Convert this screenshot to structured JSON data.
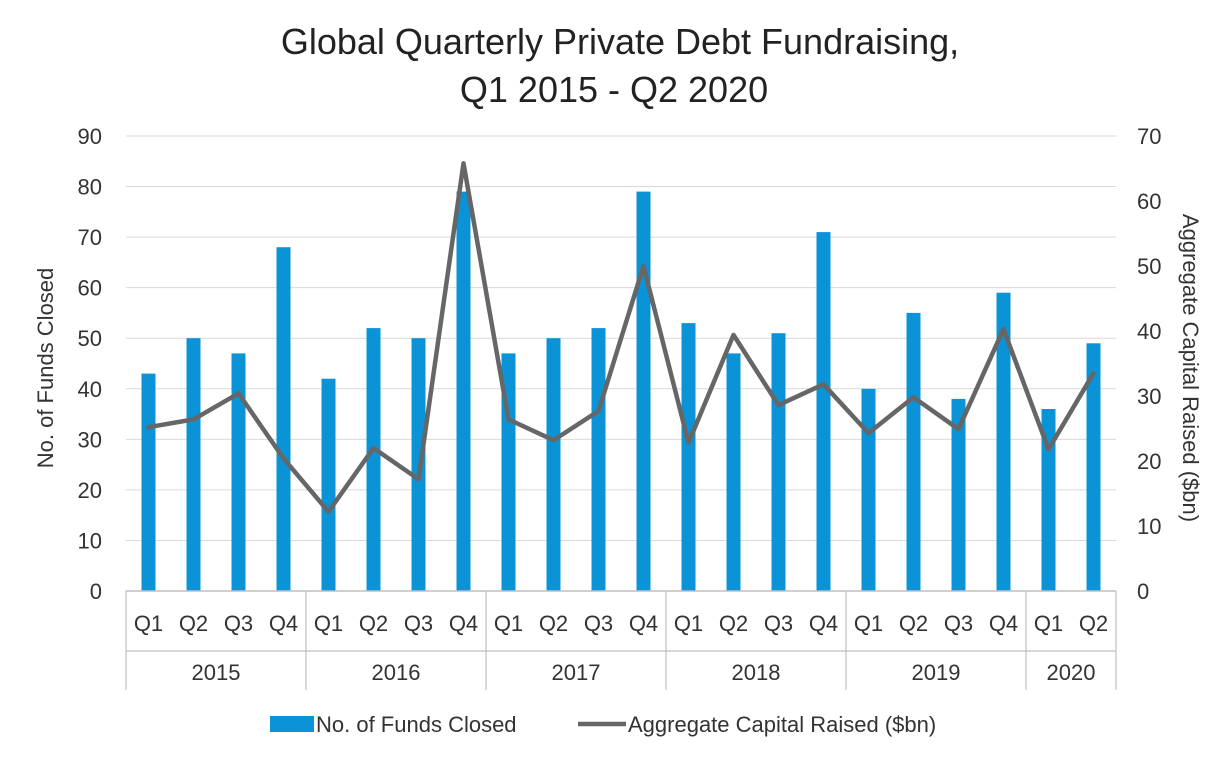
{
  "chart_data": {
    "type": "bar",
    "title_lines": [
      "Global Quarterly Private Debt Fundraising,",
      "Q1 2015 - Q2 2020"
    ],
    "ylabel_left": "No. of Funds Closed",
    "ylabel_right": "Aggregate Capital Raised ($bn)",
    "ylim_left": [
      0,
      90
    ],
    "ylim_right": [
      0,
      70
    ],
    "yticks_left": [
      "0",
      "10",
      "20",
      "30",
      "40",
      "50",
      "60",
      "70",
      "80",
      "90"
    ],
    "yticks_right": [
      "0",
      "10",
      "20",
      "30",
      "40",
      "50",
      "60",
      "70"
    ],
    "grid": true,
    "legend_position": "bottom",
    "categories": [
      "Q1",
      "Q2",
      "Q3",
      "Q4",
      "Q1",
      "Q2",
      "Q3",
      "Q4",
      "Q1",
      "Q2",
      "Q3",
      "Q4",
      "Q1",
      "Q2",
      "Q3",
      "Q4",
      "Q1",
      "Q2",
      "Q3",
      "Q4",
      "Q1",
      "Q2"
    ],
    "years": [
      {
        "label": "2015",
        "count": 4
      },
      {
        "label": "2016",
        "count": 4
      },
      {
        "label": "2017",
        "count": 4
      },
      {
        "label": "2018",
        "count": 4
      },
      {
        "label": "2019",
        "count": 4
      },
      {
        "label": "2020",
        "count": 2
      }
    ],
    "series": [
      {
        "name": "No. of Funds Closed",
        "type": "bar",
        "axis": "left",
        "color": "#0b93d8",
        "values": [
          43,
          50,
          47,
          68,
          42,
          52,
          50,
          79,
          47,
          50,
          52,
          79,
          53,
          47,
          51,
          71,
          40,
          55,
          38,
          59,
          36,
          49
        ]
      },
      {
        "name": "Aggregate Capital Raised ($bn)",
        "type": "line",
        "axis": "right",
        "color": "#666666",
        "values": [
          25.2,
          26.4,
          30.4,
          20.4,
          12.2,
          22.0,
          17.2,
          65.8,
          26.4,
          23.2,
          27.7,
          50.0,
          22.8,
          39.4,
          28.6,
          31.8,
          24.3,
          29.8,
          24.9,
          40.3,
          21.8,
          33.5
        ]
      }
    ]
  }
}
